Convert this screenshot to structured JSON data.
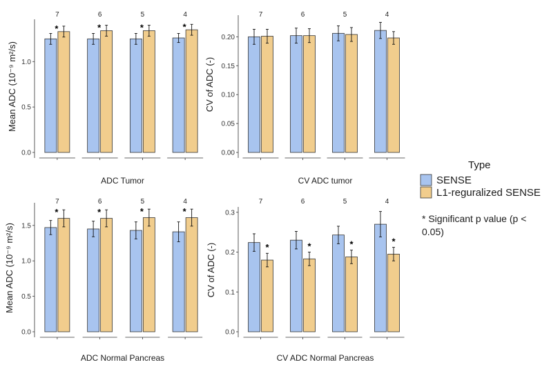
{
  "colors": {
    "sense": "#a8c4ef",
    "l1": "#f1cd8d",
    "outline": "#333333"
  },
  "legend": {
    "title": "Type",
    "items": [
      {
        "label": "SENSE",
        "color": "#a8c4ef"
      },
      {
        "label": "L1-reguralized SENSE",
        "color": "#f1cd8d"
      }
    ]
  },
  "note": {
    "line1": "* Significant  p value (p <",
    "line2": "0.05)"
  },
  "chart_data": [
    {
      "type": "bar",
      "title": "ADC Tumor",
      "xlabel": "ADC Tumor",
      "ylabel": "Mean ADC (10⁻⁹ m²/s)",
      "ylim": [
        0,
        1.45
      ],
      "yticks": [
        0.0,
        0.5,
        1.0
      ],
      "ytick_labels": [
        "0.0",
        "0.5",
        "1.0"
      ],
      "categories": [
        "7",
        "6",
        "5",
        "4"
      ],
      "series": [
        {
          "name": "SENSE",
          "values": [
            1.25,
            1.25,
            1.25,
            1.26
          ],
          "err": [
            0.06,
            0.06,
            0.06,
            0.05
          ]
        },
        {
          "name": "L1-reguralized SENSE",
          "values": [
            1.33,
            1.34,
            1.34,
            1.35
          ],
          "err": [
            0.06,
            0.06,
            0.06,
            0.06
          ]
        }
      ],
      "significant": [
        true,
        true,
        true,
        true
      ]
    },
    {
      "type": "bar",
      "title": "CV ADC tumor",
      "xlabel": "CV ADC tumor",
      "ylabel": "CV of ADC (-)",
      "ylim": [
        0,
        0.235
      ],
      "yticks": [
        0.0,
        0.05,
        0.1,
        0.15,
        0.2
      ],
      "ytick_labels": [
        "0.00",
        "0.05",
        "0.10",
        "0.15",
        "0.20"
      ],
      "categories": [
        "7",
        "6",
        "5",
        "4"
      ],
      "series": [
        {
          "name": "SENSE",
          "values": [
            0.2,
            0.202,
            0.206,
            0.211
          ],
          "err": [
            0.013,
            0.013,
            0.013,
            0.014
          ]
        },
        {
          "name": "L1-reguralized SENSE",
          "values": [
            0.201,
            0.202,
            0.204,
            0.198
          ],
          "err": [
            0.012,
            0.012,
            0.012,
            0.011
          ]
        }
      ],
      "significant": [
        false,
        false,
        false,
        false
      ]
    },
    {
      "type": "bar",
      "title": "ADC Normal Pancreas",
      "xlabel": "ADC Normal Pancreas",
      "ylabel": "Mean ADC (10⁻⁹ m²/s)",
      "ylim": [
        0,
        1.8
      ],
      "yticks": [
        0.0,
        0.5,
        1.0,
        1.5
      ],
      "ytick_labels": [
        "0.0",
        "0.5",
        "1.0",
        "1.5"
      ],
      "categories": [
        "7",
        "6",
        "5",
        "4"
      ],
      "series": [
        {
          "name": "SENSE",
          "values": [
            1.47,
            1.45,
            1.43,
            1.41
          ],
          "err": [
            0.1,
            0.11,
            0.12,
            0.14
          ]
        },
        {
          "name": "L1-reguralized SENSE",
          "values": [
            1.6,
            1.6,
            1.61,
            1.61
          ],
          "err": [
            0.12,
            0.12,
            0.12,
            0.12
          ]
        }
      ],
      "significant": [
        true,
        true,
        true,
        true
      ]
    },
    {
      "type": "bar",
      "title": "CV ADC Normal Pancreas",
      "xlabel": "CV ADC Normal Pancreas",
      "ylabel": "CV of ADC (-)",
      "ylim": [
        0,
        0.31
      ],
      "yticks": [
        0.0,
        0.1,
        0.2,
        0.3
      ],
      "ytick_labels": [
        "0.0",
        "0.1",
        "0.2",
        "0.3"
      ],
      "categories": [
        "7",
        "6",
        "5",
        "4"
      ],
      "series": [
        {
          "name": "SENSE",
          "values": [
            0.224,
            0.23,
            0.243,
            0.27
          ],
          "err": [
            0.022,
            0.022,
            0.022,
            0.032
          ]
        },
        {
          "name": "L1-reguralized SENSE",
          "values": [
            0.18,
            0.183,
            0.188,
            0.195
          ],
          "err": [
            0.017,
            0.017,
            0.017,
            0.017
          ]
        }
      ],
      "significant": [
        true,
        true,
        true,
        true
      ]
    }
  ]
}
